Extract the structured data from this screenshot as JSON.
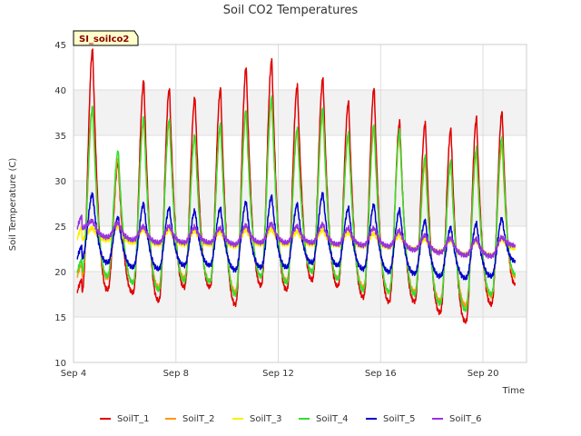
{
  "chart_data": {
    "type": "line",
    "title": "Soil CO2 Temperatures",
    "xlabel": "Time",
    "ylabel": "Soil Temperature (C)",
    "site_label": "SI_soilco2",
    "ylim": [
      10,
      45
    ],
    "xlim": [
      4.0,
      21.7
    ],
    "yticks": [
      10,
      15,
      20,
      25,
      30,
      35,
      40,
      45
    ],
    "xticks": [
      {
        "value": 4,
        "label": "Sep 4"
      },
      {
        "value": 8,
        "label": "Sep 8"
      },
      {
        "value": 12,
        "label": "Sep 12"
      },
      {
        "value": 16,
        "label": "Sep 16"
      },
      {
        "value": 20,
        "label": "Sep 20"
      }
    ],
    "bands": [
      [
        15,
        20
      ],
      [
        25,
        30
      ],
      [
        35,
        40
      ]
    ],
    "grid": true,
    "legend_position": "bottom",
    "x_unit": "day of September",
    "day_peaks": [
      4.75,
      5.75,
      6.75,
      7.75,
      8.75,
      9.75,
      10.75,
      11.75,
      12.75,
      13.75,
      14.75,
      15.75,
      16.75,
      17.75,
      18.75,
      19.75,
      20.75
    ],
    "series": [
      {
        "name": "SoilT_1",
        "color": "#e00000",
        "peaks": [
          44.5,
          32.0,
          41.0,
          40.2,
          39.2,
          40.2,
          42.5,
          43.3,
          40.5,
          41.3,
          38.7,
          40.2,
          36.5,
          36.4,
          35.7,
          36.9,
          37.6
        ],
        "troughs": [
          17.8,
          18.0,
          17.7,
          16.8,
          18.3,
          18.3,
          16.4,
          18.5,
          18.0,
          19.1,
          18.4,
          17.2,
          16.7,
          16.7,
          15.5,
          14.5,
          16.4,
          18.7
        ]
      },
      {
        "name": "SoilT_2",
        "color": "#ff9900",
        "peaks": [
          38.0,
          32.5,
          36.8,
          36.5,
          35.0,
          36.0,
          37.5,
          39.0,
          35.5,
          37.5,
          35.0,
          35.8,
          35.0,
          32.0,
          32.0,
          33.0,
          34.0
        ],
        "troughs": [
          19.5,
          19.3,
          18.8,
          18.3,
          19.3,
          19.0,
          17.8,
          19.5,
          19.0,
          20.0,
          19.3,
          18.3,
          17.8,
          17.8,
          16.8,
          16.3,
          17.3,
          19.5
        ]
      },
      {
        "name": "SoilT_3",
        "color": "#ffee00",
        "peaks": [
          24.8,
          25.0,
          24.7,
          24.6,
          24.5,
          24.4,
          24.6,
          24.7,
          24.4,
          24.6,
          24.3,
          24.2,
          24.0,
          23.6,
          23.5,
          23.4,
          23.6
        ],
        "troughs": [
          23.6,
          23.5,
          23.2,
          23.0,
          23.0,
          23.0,
          22.8,
          23.0,
          23.0,
          23.0,
          22.9,
          22.8,
          22.7,
          22.5,
          22.2,
          21.9,
          21.8,
          22.6
        ]
      },
      {
        "name": "SoilT_4",
        "color": "#33dd33",
        "peaks": [
          38.2,
          33.3,
          37.0,
          36.8,
          35.0,
          36.3,
          37.8,
          39.2,
          35.7,
          38.0,
          35.3,
          36.2,
          35.5,
          32.7,
          32.2,
          33.6,
          34.8
        ],
        "troughs": [
          20.0,
          19.5,
          18.8,
          18.0,
          19.0,
          18.9,
          17.5,
          19.5,
          18.8,
          20.0,
          19.2,
          18.0,
          17.8,
          17.5,
          16.5,
          15.8,
          17.5,
          19.8
        ]
      },
      {
        "name": "SoilT_5",
        "color": "#0000cc",
        "peaks": [
          28.6,
          26.0,
          27.5,
          27.0,
          26.7,
          27.0,
          27.7,
          28.3,
          27.4,
          28.6,
          27.0,
          27.4,
          26.8,
          25.6,
          24.9,
          25.3,
          25.9
        ],
        "troughs": [
          21.5,
          21.0,
          20.5,
          20.3,
          20.7,
          20.7,
          20.2,
          20.5,
          20.5,
          21.0,
          20.7,
          20.3,
          20.0,
          19.8,
          19.5,
          19.3,
          19.5,
          21.2
        ]
      },
      {
        "name": "SoilT_6",
        "color": "#9933dd",
        "peaks": [
          25.6,
          25.4,
          25.0,
          25.0,
          24.9,
          24.8,
          25.1,
          25.3,
          25.0,
          25.2,
          24.8,
          24.8,
          24.5,
          24.0,
          23.7,
          23.6,
          23.8
        ],
        "troughs": [
          24.8,
          23.8,
          23.5,
          23.2,
          23.2,
          23.2,
          23.0,
          23.2,
          23.2,
          23.2,
          23.0,
          22.9,
          22.8,
          22.4,
          22.1,
          21.8,
          21.7,
          22.9
        ]
      }
    ]
  }
}
